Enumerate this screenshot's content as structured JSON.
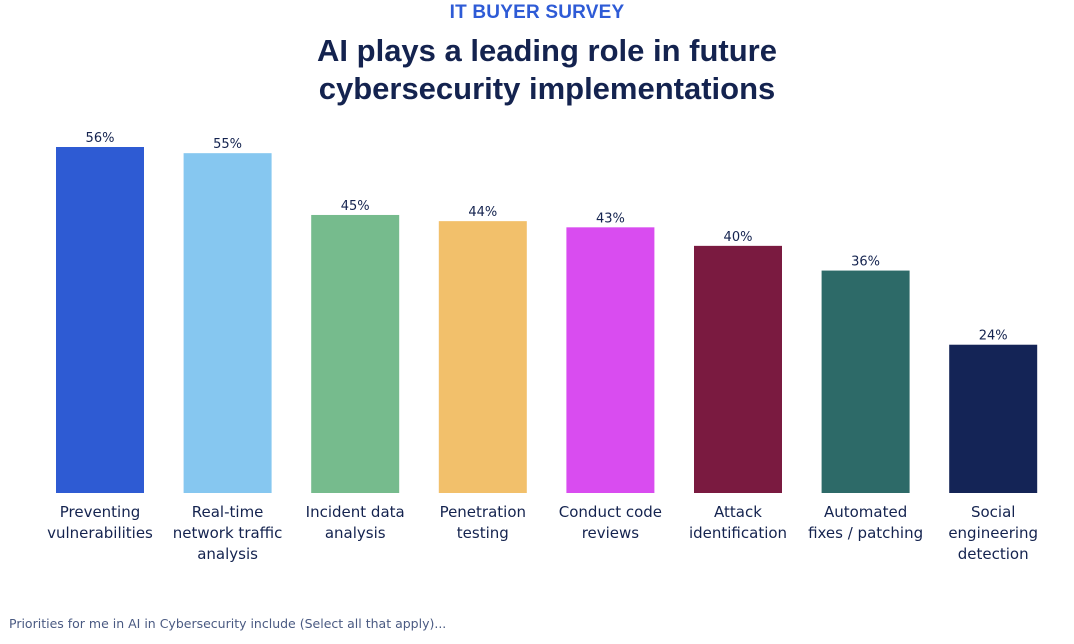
{
  "header": {
    "kicker": "IT BUYER SURVEY",
    "title_line1": "AI plays a leading role in future",
    "title_line2": "cybersecurity implementations"
  },
  "footnote": "Priorities for me in AI in Cybersecurity include (Select all that apply)...",
  "chart_data": {
    "type": "bar",
    "title": "AI plays a leading role in future cybersecurity implementations",
    "xlabel": "",
    "ylabel": "",
    "ylim": [
      0,
      56
    ],
    "grid": false,
    "legend": "none",
    "value_suffix": "%",
    "categories": [
      [
        "Preventing",
        "vulnerabilities"
      ],
      [
        "Real-time",
        "network traffic",
        "analysis"
      ],
      [
        "Incident data",
        "analysis"
      ],
      [
        "Penetration",
        "testing"
      ],
      [
        "Conduct code",
        "reviews"
      ],
      [
        "Attack",
        "identification"
      ],
      [
        "Automated",
        "fixes / patching"
      ],
      [
        "Social",
        "engineering",
        "detection"
      ]
    ],
    "values": [
      56,
      55,
      45,
      44,
      43,
      40,
      36,
      24
    ],
    "colors": [
      "#2e5bd3",
      "#86c7f0",
      "#76bb8d",
      "#f2c06b",
      "#d94cf0",
      "#7a1a40",
      "#2d6a68",
      "#142456"
    ]
  }
}
